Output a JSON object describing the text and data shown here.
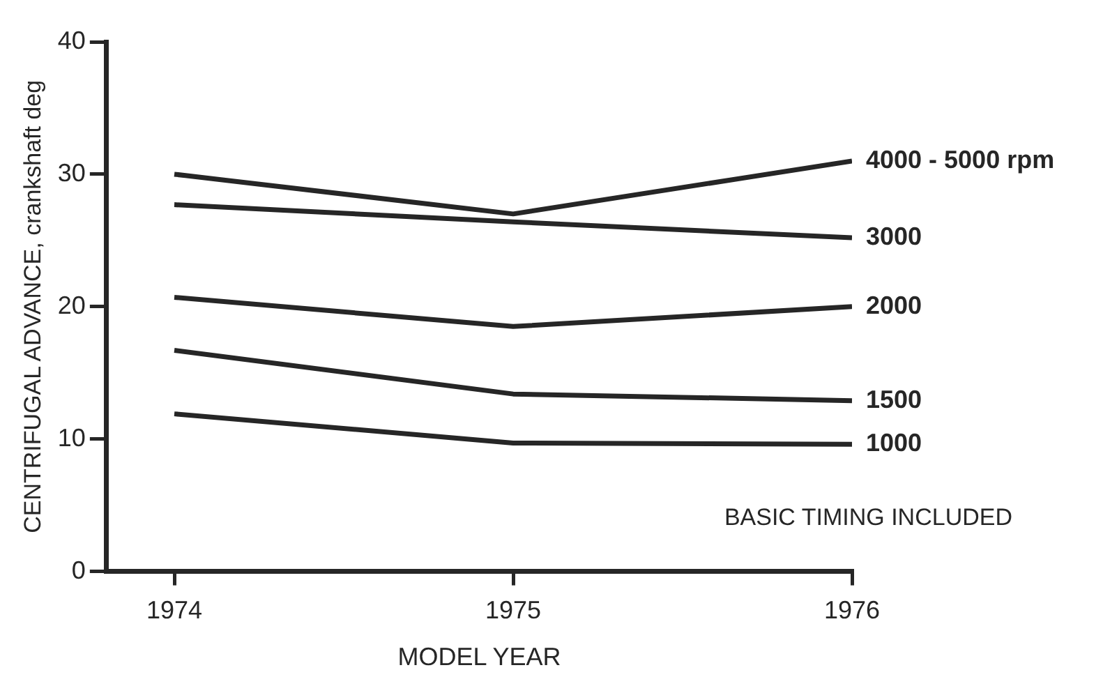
{
  "chart_data": {
    "type": "line",
    "xlabel": "MODEL YEAR",
    "ylabel": "CENTRIFUGAL ADVANCE, crankshaft deg",
    "x": [
      1974,
      1975,
      1976
    ],
    "xlim": [
      1973.8,
      1976
    ],
    "xticks": [
      1974,
      1975,
      1976
    ],
    "ylim": [
      0,
      40
    ],
    "yticks": [
      0,
      10,
      20,
      30,
      40
    ],
    "grid": false,
    "legend": false,
    "marker": "none",
    "line_style": "solid",
    "series": [
      {
        "name": "4000 - 5000 rpm",
        "color": "#262626",
        "values": [
          30,
          27,
          31
        ]
      },
      {
        "name": "3000",
        "color": "#262626",
        "values": [
          27.7,
          26.4,
          25.2
        ]
      },
      {
        "name": "2000",
        "color": "#262626",
        "values": [
          20.7,
          18.5,
          20
        ]
      },
      {
        "name": "1500",
        "color": "#262626",
        "values": [
          16.7,
          13.4,
          12.9
        ]
      },
      {
        "name": "1000",
        "color": "#262626",
        "values": [
          11.9,
          9.7,
          9.6
        ]
      }
    ],
    "annotations": [
      "BASIC TIMING INCLUDED"
    ]
  }
}
